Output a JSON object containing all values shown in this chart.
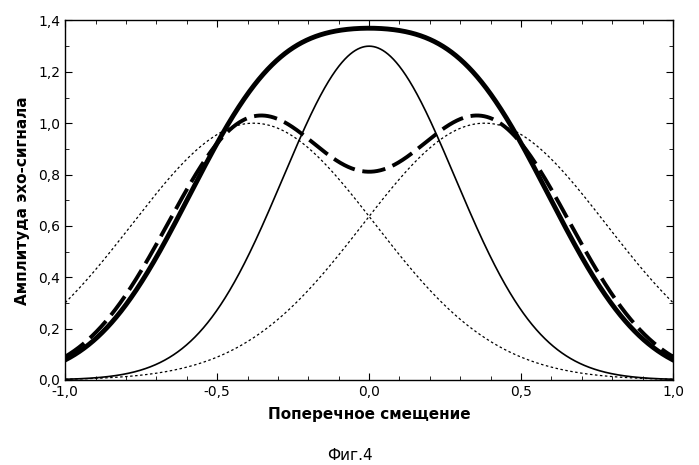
{
  "xlim": [
    -1.0,
    1.0
  ],
  "ylim": [
    0.0,
    1.4
  ],
  "xlabel": "Поперечное смещение",
  "ylabel": "Амплитуда эхо-сигнала",
  "caption": "Фиг.4",
  "xticks": [
    -1.0,
    -0.5,
    0.0,
    0.5,
    1.0
  ],
  "yticks": [
    0.0,
    0.2,
    0.4,
    0.6,
    0.8,
    1.0,
    1.2,
    1.4
  ],
  "background_color": "#ffffff",
  "d": 0.38,
  "s": 0.4,
  "thick_solid_peak": 1.37,
  "thin_solid_peak": 1.3,
  "thick_dashed_peak": 1.03
}
